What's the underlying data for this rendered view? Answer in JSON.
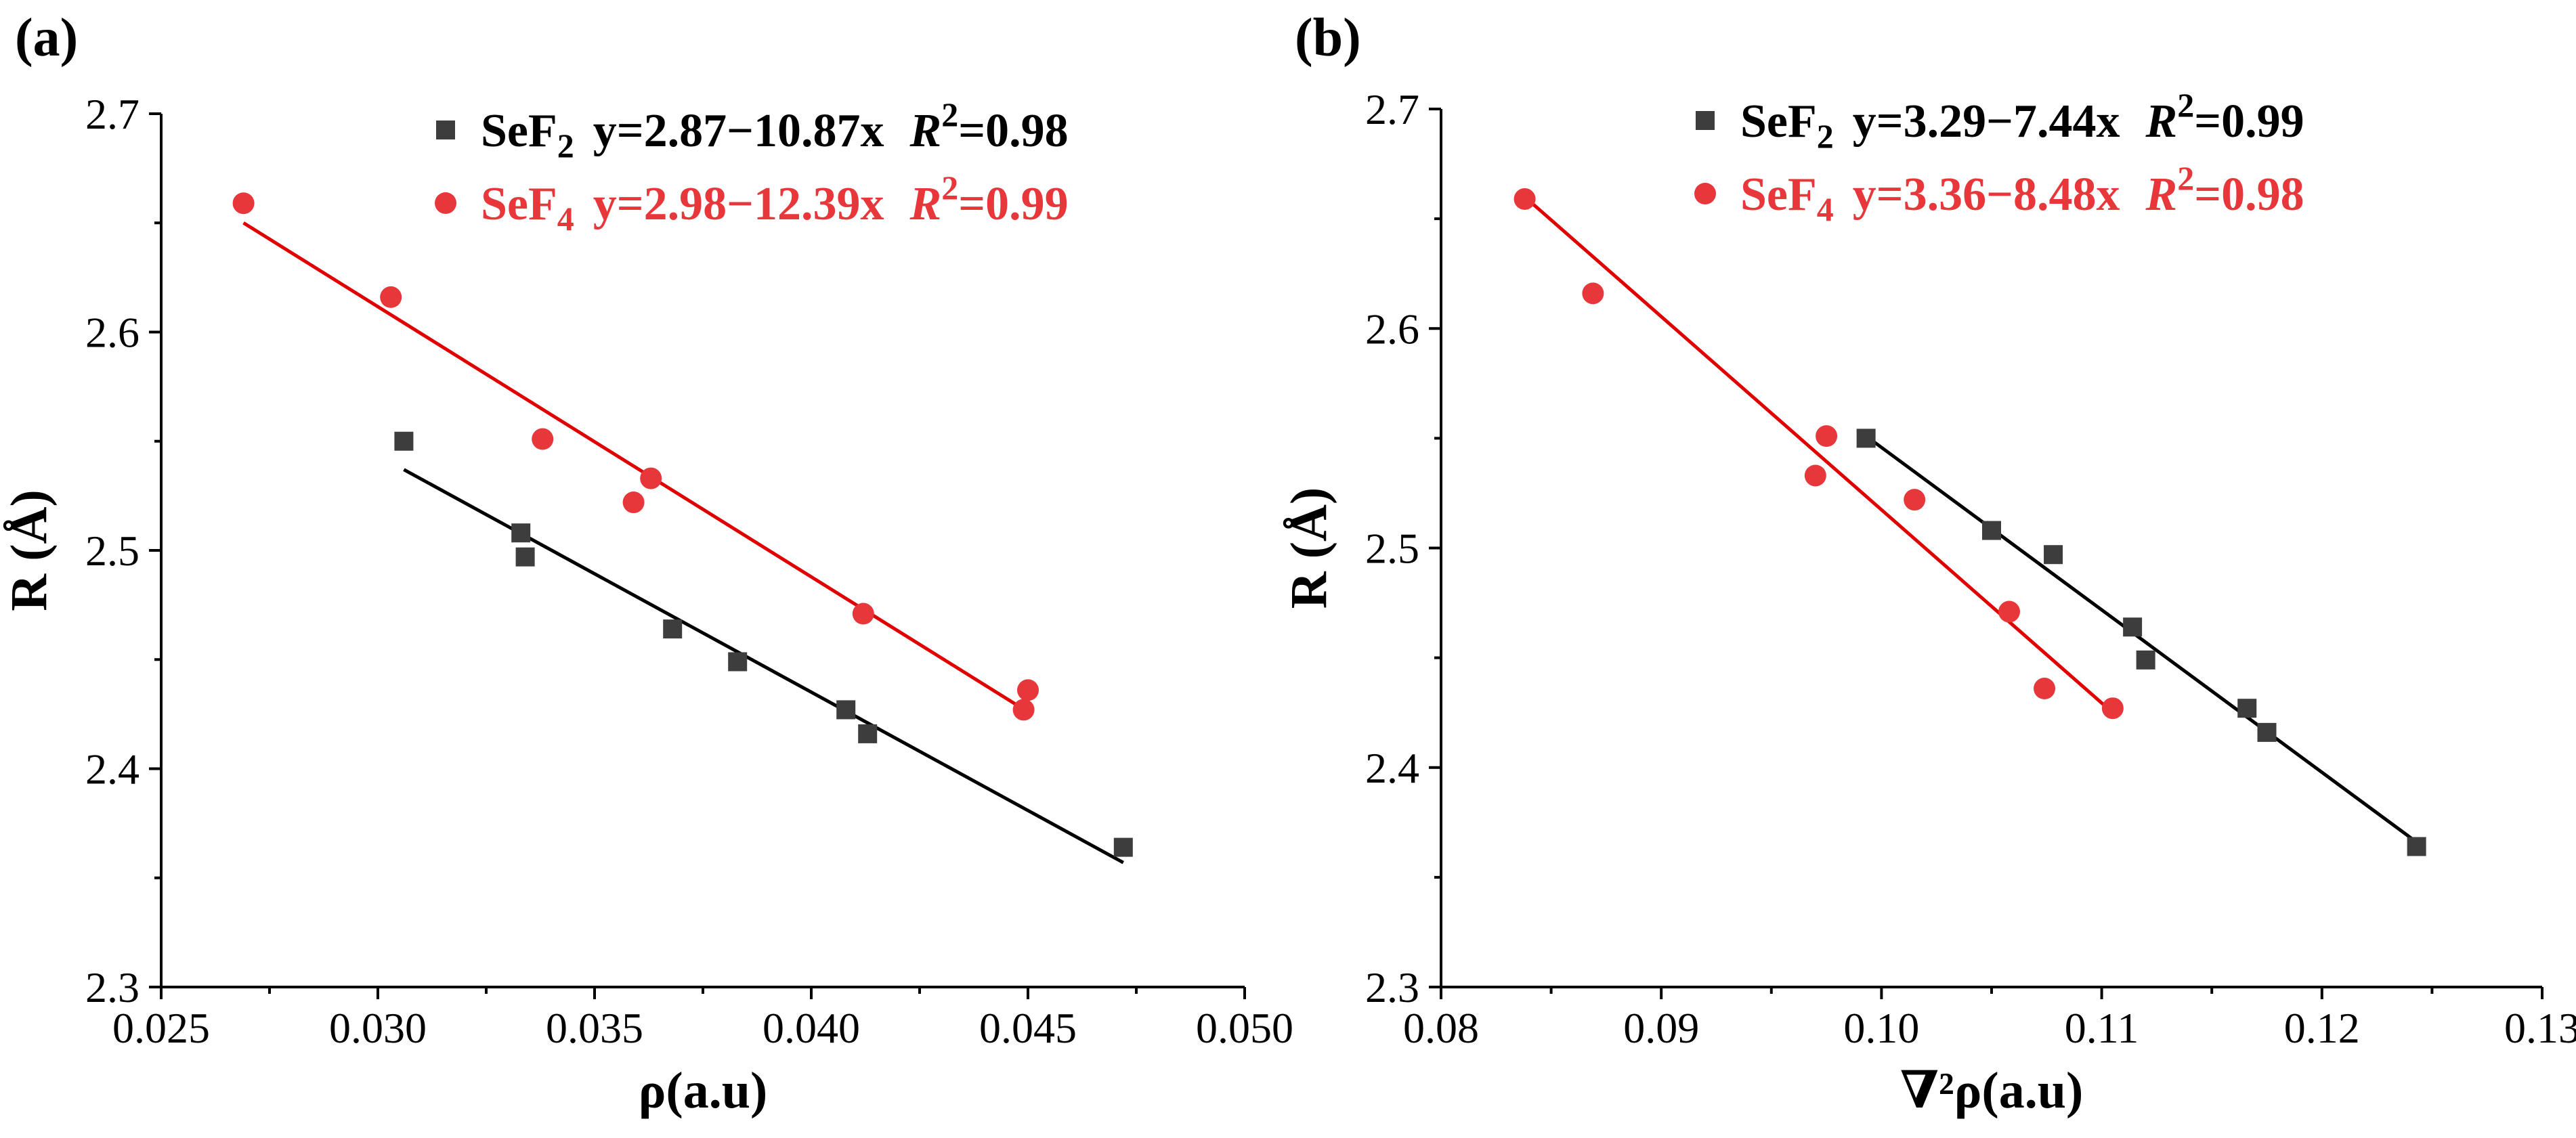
{
  "colors": {
    "sef2": "#3d3d3d",
    "sef4": "#e8373a",
    "sef2_fit": "#000000",
    "sef4_fit": "#e00000"
  },
  "chart_data": [
    {
      "type": "scatter",
      "panel": "(a)",
      "xlabel": "ρ(a.u)",
      "ylabel": "R (Å)",
      "xlim": [
        0.025,
        0.05
      ],
      "ylim": [
        2.3,
        2.7
      ],
      "xticks": [
        "0.025",
        "0.030",
        "0.035",
        "0.040",
        "0.045",
        "0.050"
      ],
      "yticks": [
        "2.3",
        "2.4",
        "2.5",
        "2.6",
        "2.7"
      ],
      "series": [
        {
          "name": "SeF",
          "sub": "2",
          "eq": "y=2.87−10.87x",
          "r2_symbol": "R",
          "r2_sup": "2",
          "r2_value": "=0.98",
          "marker": "square",
          "color": "#3d3d3d",
          "fit_color": "#000000",
          "x": [
            0.0306,
            0.0333,
            0.0334,
            0.0368,
            0.0383,
            0.0408,
            0.0413,
            0.0472
          ],
          "y": [
            2.55,
            2.508,
            2.497,
            2.464,
            2.449,
            2.427,
            2.416,
            2.364
          ],
          "fit": {
            "x": [
              0.0306,
              0.0472
            ],
            "y": [
              2.537,
              2.357
            ]
          }
        },
        {
          "name": "SeF",
          "sub": "4",
          "eq": "y=2.98−12.39x",
          "r2_symbol": "R",
          "r2_sup": "2",
          "r2_value": "=0.99",
          "marker": "circle",
          "color": "#e8373a",
          "fit_color": "#e00000",
          "x": [
            0.0269,
            0.0303,
            0.0338,
            0.0359,
            0.0363,
            0.0412,
            0.0449,
            0.045
          ],
          "y": [
            2.659,
            2.616,
            2.551,
            2.522,
            2.533,
            2.471,
            2.427,
            2.436
          ],
          "fit": {
            "x": [
              0.0269,
              0.045
            ],
            "y": [
              2.65,
              2.426
            ]
          }
        }
      ]
    },
    {
      "type": "scatter",
      "panel": "(b)",
      "xlabel": "∇²ρ(a.u)",
      "ylabel": "R (Å)",
      "xlim": [
        0.08,
        0.13
      ],
      "ylim": [
        2.3,
        2.7
      ],
      "xticks": [
        "0.08",
        "0.09",
        "0.10",
        "0.11",
        "0.12",
        "0.13"
      ],
      "yticks": [
        "2.3",
        "2.4",
        "2.5",
        "2.6",
        "2.7"
      ],
      "series": [
        {
          "name": "SeF",
          "sub": "2",
          "eq": "y=3.29−7.44x",
          "r2_symbol": "R",
          "r2_sup": "2",
          "r2_value": "=0.99",
          "marker": "square",
          "color": "#3d3d3d",
          "fit_color": "#000000",
          "x": [
            0.0993,
            0.105,
            0.1078,
            0.1114,
            0.112,
            0.1166,
            0.1175,
            0.1243
          ],
          "y": [
            2.55,
            2.508,
            2.497,
            2.464,
            2.449,
            2.427,
            2.416,
            2.364
          ],
          "fit": {
            "x": [
              0.0993,
              0.1243
            ],
            "y": [
              2.551,
              2.366
            ]
          }
        },
        {
          "name": "SeF",
          "sub": "4",
          "eq": "y=3.36−8.48x",
          "r2_symbol": "R",
          "r2_sup": "2",
          "r2_value": "=0.98",
          "marker": "circle",
          "color": "#e8373a",
          "fit_color": "#e00000",
          "x": [
            0.0838,
            0.0869,
            0.0975,
            0.097,
            0.1015,
            0.1058,
            0.1074,
            0.1105
          ],
          "y": [
            2.659,
            2.616,
            2.551,
            2.533,
            2.522,
            2.471,
            2.436,
            2.427
          ],
          "fit": {
            "x": [
              0.0838,
              0.1105
            ],
            "y": [
              2.66,
              2.425
            ]
          }
        }
      ]
    }
  ]
}
